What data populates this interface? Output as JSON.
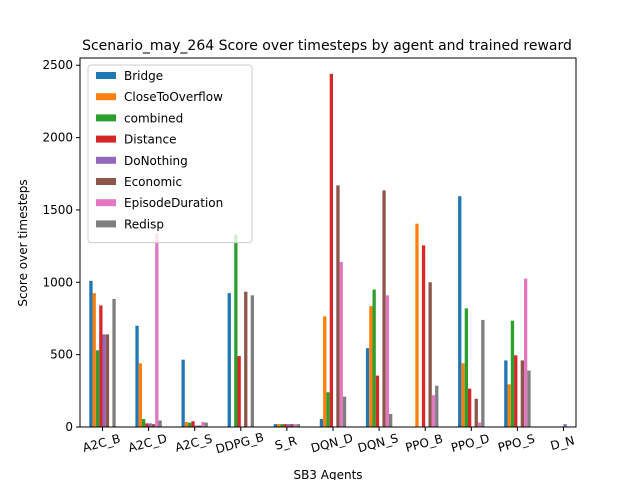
{
  "chart_data": {
    "type": "bar",
    "title": "Scenario_may_264 Score over timesteps by agent and trained reward",
    "xlabel": "SB3 Agents",
    "ylabel": "Score over timesteps",
    "categories": [
      "A2C_B",
      "A2C_D",
      "A2C_S",
      "DDPG_B",
      "S_R",
      "DQN_D",
      "DQN_S",
      "PPO_B",
      "PPO_D",
      "PPO_S",
      "D_N"
    ],
    "ylim": [
      0,
      2550
    ],
    "yticks": [
      0,
      500,
      1000,
      1500,
      2000,
      2500
    ],
    "grid": false,
    "legend_position": "top-left",
    "series": [
      {
        "name": "Bridge",
        "color": "#1f77b4",
        "values": [
          1010,
          700,
          465,
          925,
          20,
          55,
          545,
          0,
          1595,
          460,
          0
        ]
      },
      {
        "name": "CloseToOverflow",
        "color": "#ff7f0e",
        "values": [
          925,
          440,
          35,
          0,
          20,
          765,
          835,
          1405,
          440,
          295,
          0
        ]
      },
      {
        "name": "combined",
        "color": "#2ca02c",
        "values": [
          530,
          55,
          30,
          1330,
          20,
          240,
          950,
          0,
          820,
          735,
          0
        ]
      },
      {
        "name": "Distance",
        "color": "#d62728",
        "values": [
          840,
          25,
          40,
          490,
          20,
          2440,
          355,
          1255,
          265,
          495,
          0
        ]
      },
      {
        "name": "DoNothing",
        "color": "#9467bd",
        "values": [
          640,
          25,
          10,
          0,
          20,
          0,
          0,
          0,
          0,
          0,
          20
        ]
      },
      {
        "name": "Economic",
        "color": "#8c564b",
        "values": [
          640,
          20,
          10,
          935,
          20,
          1670,
          1635,
          1000,
          195,
          460,
          0
        ]
      },
      {
        "name": "EpisodeDuration",
        "color": "#e377c2",
        "values": [
          0,
          1340,
          35,
          0,
          20,
          1140,
          910,
          220,
          30,
          1025,
          0
        ]
      },
      {
        "name": "Redisp",
        "color": "#7f7f7f",
        "values": [
          885,
          45,
          30,
          910,
          20,
          210,
          90,
          285,
          740,
          390,
          0
        ]
      }
    ]
  }
}
